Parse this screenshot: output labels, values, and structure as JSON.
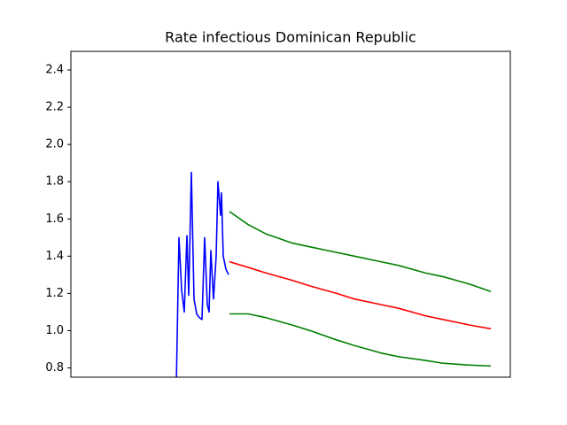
{
  "chart_data": {
    "type": "line",
    "title": "Rate infectious Dominican Republic",
    "xlim": [
      0,
      496
    ],
    "ylim": [
      0.75,
      2.5
    ],
    "yticks": [
      0.8,
      {
        "value": 1,
        "label": "1.0"
      },
      1.2,
      1.4,
      1.6,
      1.8,
      {
        "value": 2,
        "label": "2.0"
      },
      2.2,
      2.4
    ],
    "grid": false,
    "series": [
      {
        "color": "#0000ff",
        "x": [
          119,
          122,
          125,
          128,
          131,
          133,
          136,
          139,
          142,
          145,
          148,
          151,
          154,
          156,
          158,
          161,
          164,
          166,
          169,
          170,
          172,
          175,
          178
        ],
        "values": [
          0.7,
          1.5,
          1.22,
          1.1,
          1.51,
          1.19,
          1.85,
          1.17,
          1.09,
          1.07,
          1.06,
          1.5,
          1.14,
          1.1,
          1.43,
          1.17,
          1.4,
          1.8,
          1.62,
          1.74,
          1.4,
          1.33,
          1.3
        ]
      },
      {
        "color": "#008000",
        "x": [
          179,
          200,
          220,
          250,
          270,
          300,
          320,
          350,
          370,
          400,
          420,
          450,
          474
        ],
        "values": [
          1.64,
          1.57,
          1.52,
          1.47,
          1.45,
          1.42,
          1.4,
          1.37,
          1.35,
          1.31,
          1.29,
          1.25,
          1.21
        ]
      },
      {
        "color": "#ff0000",
        "x": [
          179,
          200,
          220,
          250,
          270,
          300,
          320,
          350,
          370,
          400,
          420,
          450,
          474
        ],
        "values": [
          1.37,
          1.34,
          1.31,
          1.27,
          1.24,
          1.2,
          1.17,
          1.14,
          1.12,
          1.08,
          1.06,
          1.03,
          1.01
        ]
      },
      {
        "color": "#008000",
        "x": [
          179,
          200,
          220,
          250,
          270,
          300,
          320,
          350,
          370,
          400,
          420,
          450,
          474
        ],
        "values": [
          1.09,
          1.09,
          1.07,
          1.03,
          1.0,
          0.95,
          0.92,
          0.88,
          0.86,
          0.84,
          0.825,
          0.815,
          0.81
        ]
      }
    ]
  }
}
